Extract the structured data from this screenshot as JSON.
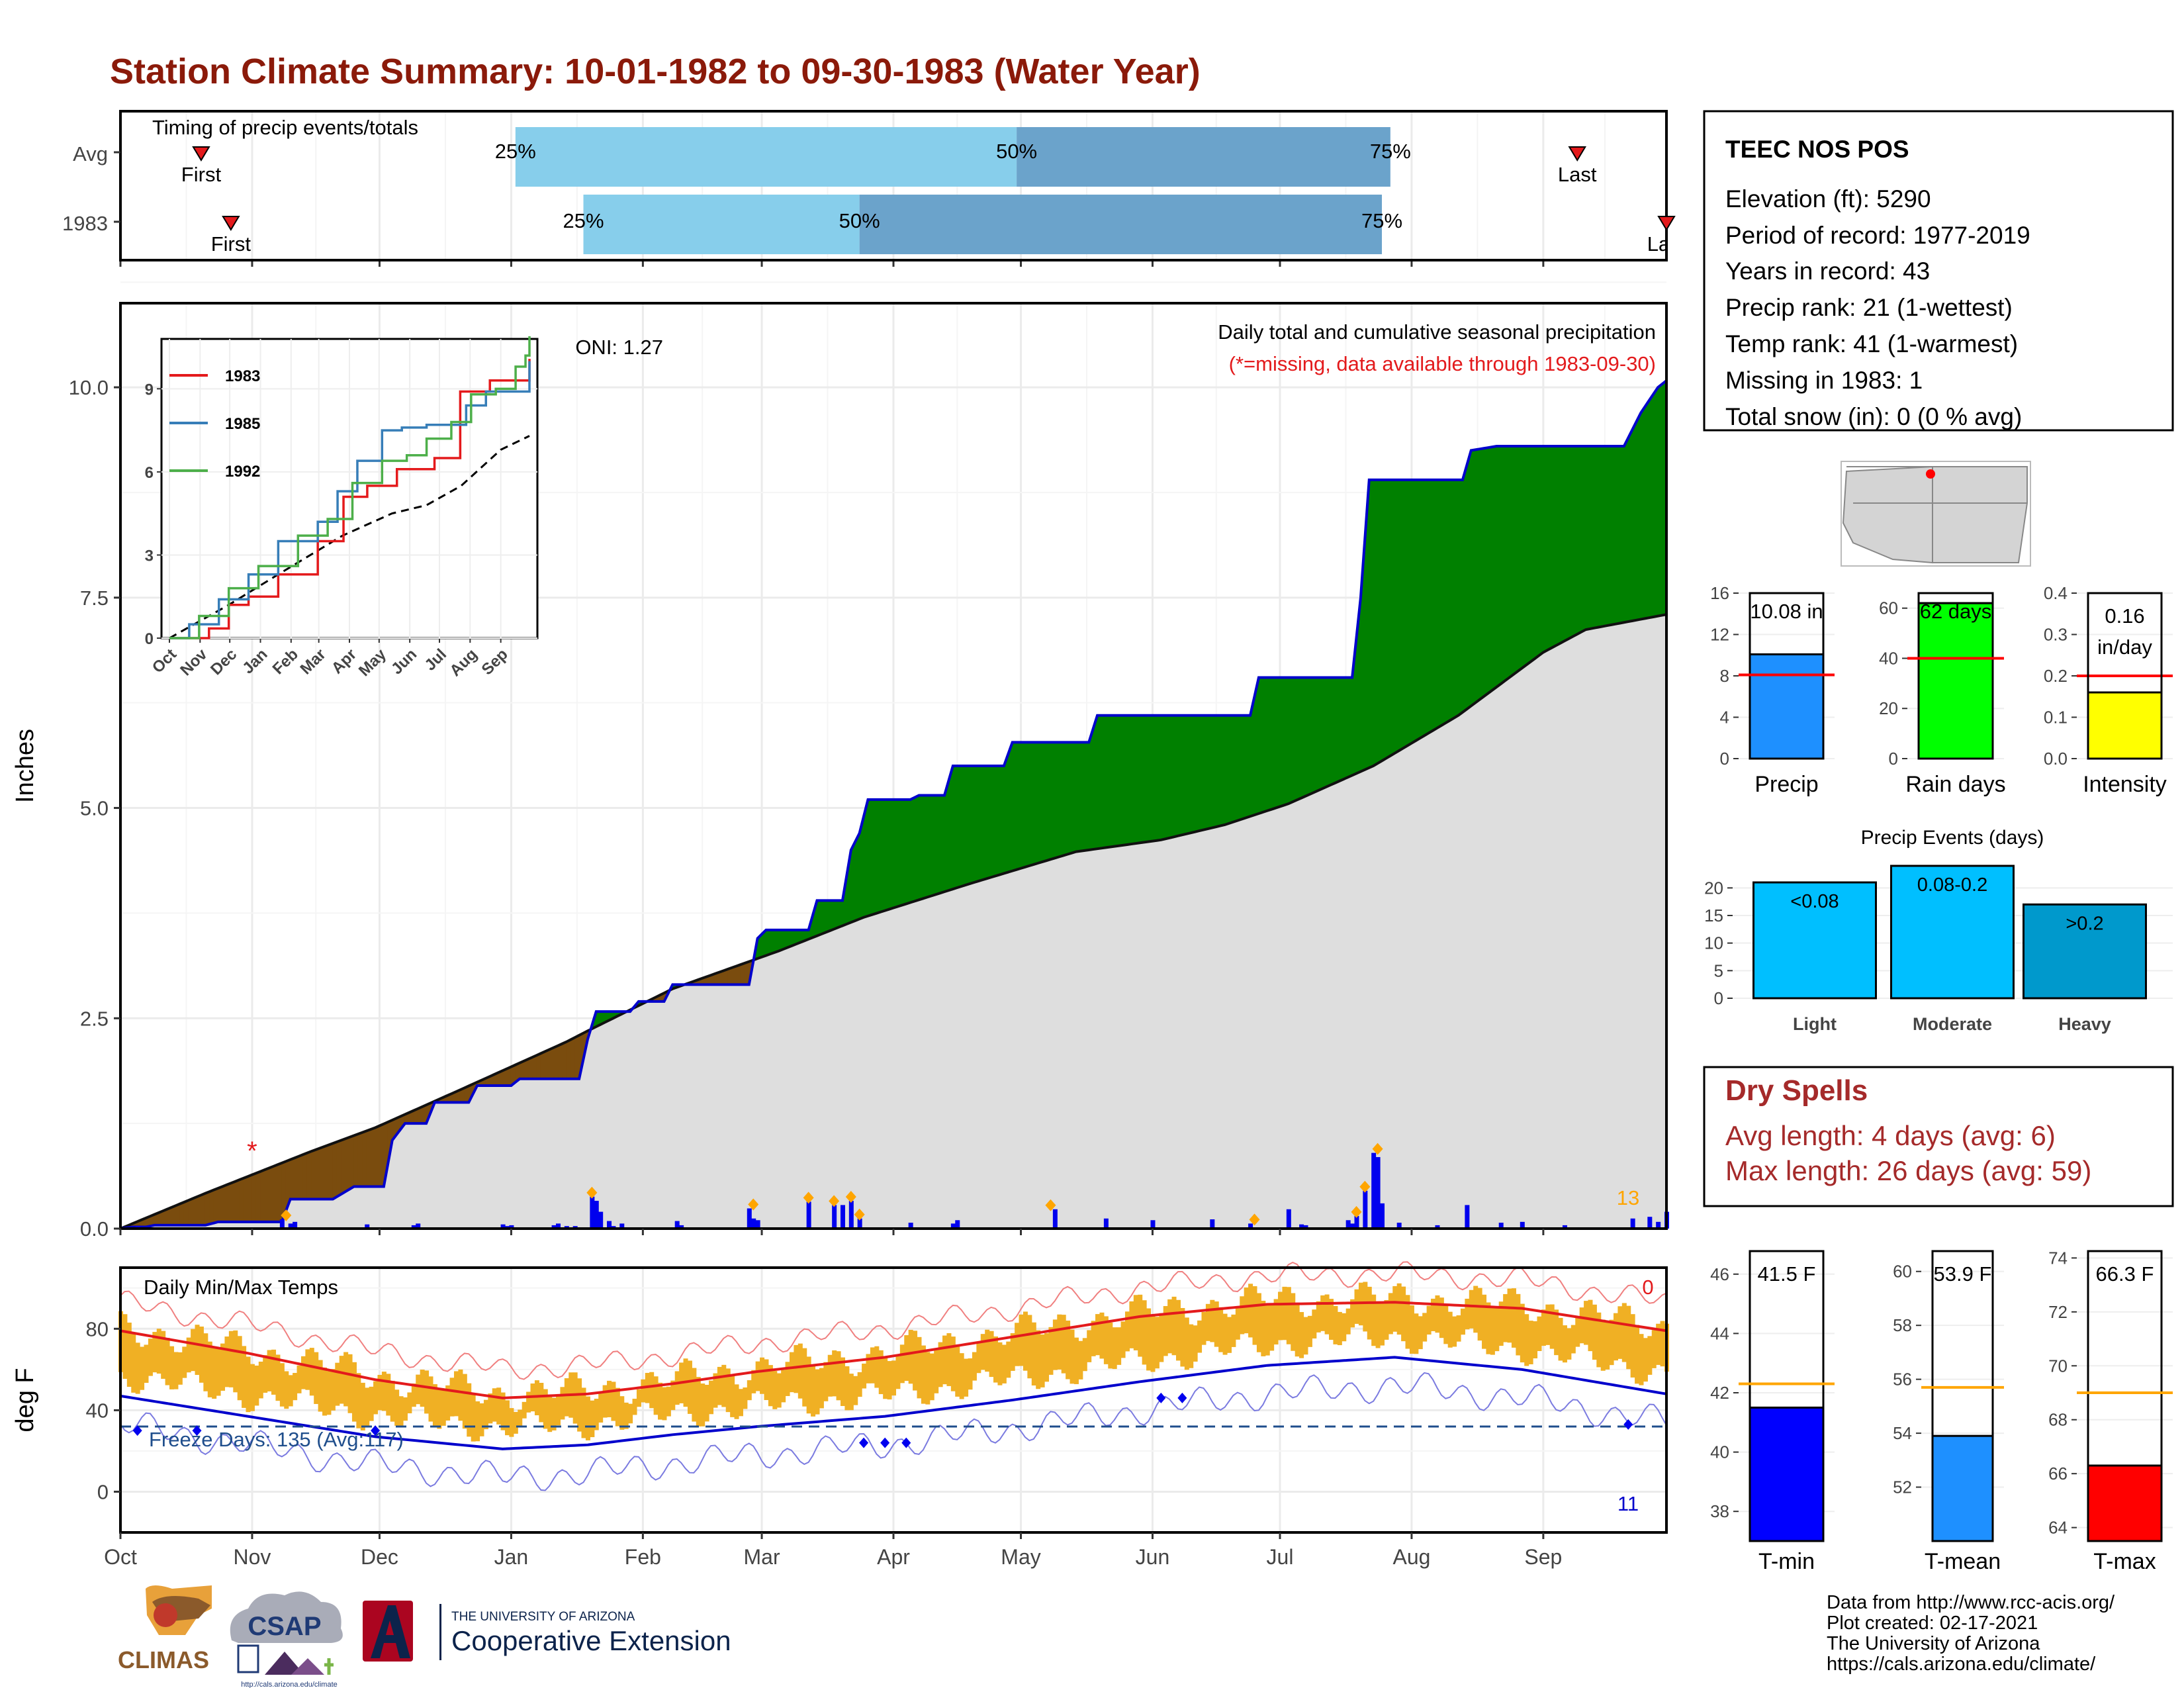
{
  "title": "Station Climate Summary: 10-01-1982 to 09-30-1983 (Water Year)",
  "months": [
    "Oct",
    "Nov",
    "Dec",
    "Jan",
    "Feb",
    "Mar",
    "Apr",
    "May",
    "Jun",
    "Jul",
    "Aug",
    "Sep"
  ],
  "timing": {
    "label": "Timing of precip events/totals",
    "rows": [
      {
        "name": "Avg",
        "first_day": 19,
        "p25": 93,
        "p50": 211,
        "p75": 299,
        "last_day": 343,
        "first_label": "First",
        "last_label": "Last"
      },
      {
        "name": "1983",
        "first_day": 26,
        "p25": 109,
        "p50": 174,
        "p75": 297,
        "last_day": 364,
        "first_label": "First",
        "last_label": "Last"
      }
    ],
    "pct_labels": [
      "25%",
      "50%",
      "75%"
    ],
    "colors": {
      "early": "#87CEEB",
      "late": "#6BA3CB",
      "marker": "#E31A1C"
    }
  },
  "chart_data": [
    {
      "type": "area",
      "name": "precip",
      "ylabel": "Inches",
      "ylim": [
        0,
        11
      ],
      "yticks": [
        0.0,
        2.5,
        5.0,
        7.5,
        10.0
      ],
      "yticklabels": [
        "0.0",
        "2.5",
        "5.0",
        "7.5",
        "10.0"
      ],
      "annotation_title": "Daily total and cumulative seasonal precipitation",
      "annotation_missing": "(*=missing, data available through 1983-09-30)",
      "oni": "ONI: 1.27",
      "count_label": "13",
      "missing_marker": "*",
      "missing_day": 31,
      "observed_cumulative": [
        [
          0,
          0
        ],
        [
          3,
          0.02
        ],
        [
          6,
          0.02
        ],
        [
          8,
          0.04
        ],
        [
          20,
          0.04
        ],
        [
          23,
          0.08
        ],
        [
          38,
          0.08
        ],
        [
          40,
          0.35
        ],
        [
          50,
          0.35
        ],
        [
          55,
          0.5
        ],
        [
          62,
          0.5
        ],
        [
          64,
          1.05
        ],
        [
          67,
          1.25
        ],
        [
          72,
          1.25
        ],
        [
          74,
          1.5
        ],
        [
          82,
          1.5
        ],
        [
          84,
          1.7
        ],
        [
          92,
          1.7
        ],
        [
          94,
          1.78
        ],
        [
          108,
          1.78
        ],
        [
          110,
          2.25
        ],
        [
          112,
          2.58
        ],
        [
          120,
          2.58
        ],
        [
          122,
          2.7
        ],
        [
          128,
          2.7
        ],
        [
          130,
          2.9
        ],
        [
          148,
          2.9
        ],
        [
          150,
          3.45
        ],
        [
          152,
          3.55
        ],
        [
          162,
          3.55
        ],
        [
          164,
          3.9
        ],
        [
          170,
          3.9
        ],
        [
          172,
          4.5
        ],
        [
          174,
          4.7
        ],
        [
          176,
          5.1
        ],
        [
          186,
          5.1
        ],
        [
          188,
          5.15
        ],
        [
          194,
          5.15
        ],
        [
          196,
          5.5
        ],
        [
          208,
          5.5
        ],
        [
          210,
          5.78
        ],
        [
          228,
          5.78
        ],
        [
          230,
          6.1
        ],
        [
          266,
          6.1
        ],
        [
          268,
          6.55
        ],
        [
          290,
          6.55
        ],
        [
          292,
          7.5
        ],
        [
          294,
          8.9
        ],
        [
          316,
          8.9
        ],
        [
          318,
          9.25
        ],
        [
          324,
          9.3
        ],
        [
          354,
          9.3
        ],
        [
          358,
          9.7
        ],
        [
          362,
          10.0
        ],
        [
          364,
          10.08
        ]
      ],
      "average_cumulative": [
        [
          0,
          0
        ],
        [
          20,
          0.42
        ],
        [
          45,
          0.92
        ],
        [
          60,
          1.2
        ],
        [
          80,
          1.65
        ],
        [
          105,
          2.22
        ],
        [
          110,
          2.35
        ],
        [
          130,
          2.85
        ],
        [
          155,
          3.3
        ],
        [
          175,
          3.7
        ],
        [
          200,
          4.1
        ],
        [
          225,
          4.48
        ],
        [
          245,
          4.62
        ],
        [
          260,
          4.8
        ],
        [
          275,
          5.05
        ],
        [
          295,
          5.5
        ],
        [
          315,
          6.1
        ],
        [
          335,
          6.85
        ],
        [
          345,
          7.12
        ],
        [
          364,
          7.3
        ]
      ],
      "daily_bars": [
        [
          1,
          0.02
        ],
        [
          4,
          0.03
        ],
        [
          38,
          0.11
        ],
        [
          40,
          0.06
        ],
        [
          41,
          0.08
        ],
        [
          58,
          0.05
        ],
        [
          69,
          0.04
        ],
        [
          70,
          0.06
        ],
        [
          90,
          0.05
        ],
        [
          91,
          0.03
        ],
        [
          92,
          0.04
        ],
        [
          102,
          0.04
        ],
        [
          103,
          0.06
        ],
        [
          105,
          0.03
        ],
        [
          107,
          0.03
        ],
        [
          111,
          0.38
        ],
        [
          112,
          0.33
        ],
        [
          113,
          0.2
        ],
        [
          115,
          0.09
        ],
        [
          116,
          0.03
        ],
        [
          118,
          0.06
        ],
        [
          131,
          0.09
        ],
        [
          132,
          0.04
        ],
        [
          148,
          0.24
        ],
        [
          149,
          0.12
        ],
        [
          150,
          0.1
        ],
        [
          162,
          0.32
        ],
        [
          168,
          0.28
        ],
        [
          170,
          0.28
        ],
        [
          172,
          0.33
        ],
        [
          174,
          0.12
        ],
        [
          186,
          0.07
        ],
        [
          196,
          0.06
        ],
        [
          197,
          0.1
        ],
        [
          220,
          0.23
        ],
        [
          232,
          0.12
        ],
        [
          243,
          0.1
        ],
        [
          257,
          0.11
        ],
        [
          266,
          0.06
        ],
        [
          275,
          0.23
        ],
        [
          278,
          0.05
        ],
        [
          279,
          0.04
        ],
        [
          289,
          0.1
        ],
        [
          290,
          0.06
        ],
        [
          291,
          0.15
        ],
        [
          293,
          0.45
        ],
        [
          295,
          0.9
        ],
        [
          296,
          0.85
        ],
        [
          297,
          0.3
        ],
        [
          301,
          0.07
        ],
        [
          310,
          0.04
        ],
        [
          317,
          0.28
        ],
        [
          325,
          0.07
        ],
        [
          330,
          0.08
        ],
        [
          340,
          0.04
        ],
        [
          356,
          0.12
        ],
        [
          360,
          0.14
        ],
        [
          362,
          0.08
        ],
        [
          364,
          0.2
        ]
      ],
      "heavy_event_days": [
        39,
        111,
        149,
        162,
        168,
        172,
        174,
        219,
        267,
        291,
        293,
        296
      ],
      "colors": {
        "above": "#008000",
        "below": "#7A4C0E",
        "avg_fill": "#DEDEDE",
        "line": "#0000CC",
        "bars": "#0000EE",
        "diamond": "#FFA500"
      }
    },
    {
      "type": "line",
      "name": "inset",
      "yticks": [
        0,
        3,
        6,
        9
      ],
      "ylim": [
        0,
        10.8
      ],
      "xticklabels": [
        "Oct",
        "Nov",
        "Dec",
        "Jan",
        "Feb",
        "Mar",
        "Apr",
        "May",
        "Jun",
        "Jul",
        "Aug",
        "Sep"
      ],
      "series": [
        {
          "name": "1983",
          "color": "#E41A1C",
          "values": [
            [
              0,
              0
            ],
            [
              40,
              0.35
            ],
            [
              60,
              1.2
            ],
            [
              80,
              1.5
            ],
            [
              110,
              2.3
            ],
            [
              150,
              3.5
            ],
            [
              176,
              5.1
            ],
            [
              200,
              5.5
            ],
            [
              230,
              6.1
            ],
            [
              268,
              6.5
            ],
            [
              294,
              8.9
            ],
            [
              324,
              9.3
            ],
            [
              364,
              10.08
            ]
          ]
        },
        {
          "name": "1985",
          "color": "#377EB8",
          "values": [
            [
              0,
              0
            ],
            [
              20,
              0.5
            ],
            [
              50,
              1.4
            ],
            [
              80,
              2.3
            ],
            [
              110,
              3.5
            ],
            [
              150,
              4.2
            ],
            [
              170,
              5.3
            ],
            [
              190,
              6.4
            ],
            [
              215,
              7.5
            ],
            [
              235,
              7.6
            ],
            [
              260,
              7.7
            ],
            [
              285,
              7.7
            ],
            [
              300,
              8.4
            ],
            [
              320,
              8.9
            ],
            [
              364,
              10.0
            ]
          ]
        },
        {
          "name": "1992",
          "color": "#4DAF4A",
          "values": [
            [
              0,
              0
            ],
            [
              30,
              0.8
            ],
            [
              60,
              1.8
            ],
            [
              90,
              2.6
            ],
            [
              130,
              3.7
            ],
            [
              160,
              4.3
            ],
            [
              185,
              5.6
            ],
            [
              215,
              6.4
            ],
            [
              240,
              6.6
            ],
            [
              260,
              7.2
            ],
            [
              285,
              7.8
            ],
            [
              305,
              8.8
            ],
            [
              330,
              9.0
            ],
            [
              350,
              9.8
            ],
            [
              360,
              10.2
            ],
            [
              364,
              10.9
            ]
          ]
        }
      ],
      "average": [
        [
          0,
          0
        ],
        [
          60,
          1.2
        ],
        [
          110,
          2.3
        ],
        [
          175,
          3.7
        ],
        [
          225,
          4.5
        ],
        [
          260,
          4.8
        ],
        [
          295,
          5.5
        ],
        [
          335,
          6.8
        ],
        [
          364,
          7.3
        ]
      ]
    },
    {
      "type": "line",
      "name": "temperature",
      "title": "Daily Min/Max Temps",
      "ylabel": "deg F",
      "ylim": [
        -20,
        110
      ],
      "yticks": [
        0,
        40,
        80
      ],
      "freeze_label": "Freeze Days: 135 (Avg:117)",
      "freeze_line": 32,
      "hot_count": "0",
      "cold_count": "11",
      "normal_max": [
        [
          0,
          79
        ],
        [
          30,
          68
        ],
        [
          60,
          55
        ],
        [
          90,
          46
        ],
        [
          110,
          48
        ],
        [
          130,
          53
        ],
        [
          150,
          59
        ],
        [
          180,
          66
        ],
        [
          210,
          76
        ],
        [
          240,
          86
        ],
        [
          270,
          92
        ],
        [
          300,
          93
        ],
        [
          330,
          90
        ],
        [
          364,
          79
        ]
      ],
      "normal_min": [
        [
          0,
          47
        ],
        [
          30,
          37
        ],
        [
          60,
          27
        ],
        [
          90,
          21
        ],
        [
          110,
          23
        ],
        [
          130,
          28
        ],
        [
          150,
          32
        ],
        [
          180,
          37
        ],
        [
          210,
          45
        ],
        [
          240,
          54
        ],
        [
          270,
          62
        ],
        [
          300,
          66
        ],
        [
          330,
          60
        ],
        [
          364,
          48
        ]
      ],
      "colors": {
        "bars": "#F0B024",
        "max": "#E31A1C",
        "min": "#0000CC",
        "freeze": "#1F4E8C"
      }
    },
    {
      "type": "bar",
      "name": "summary",
      "panels": [
        {
          "label": "Precip",
          "value": 10.08,
          "display": "10.08 in",
          "avg": 8.1,
          "ylim": [
            0,
            16
          ],
          "yticks": [
            0,
            4,
            8,
            12,
            16
          ],
          "color": "#1E90FF"
        },
        {
          "label": "Rain days",
          "value": 62,
          "display": "62 days",
          "avg": 40,
          "ylim": [
            0,
            66
          ],
          "yticks": [
            0,
            20,
            40,
            60
          ],
          "color": "#00FF00"
        },
        {
          "label": "Intensity",
          "value": 0.16,
          "display_line1": "0.16",
          "display_line2": "in/day",
          "avg": 0.2,
          "ylim": [
            0,
            0.4
          ],
          "yticks": [
            0.0,
            0.1,
            0.2,
            0.3,
            0.4
          ],
          "yticklabels": [
            "0.0",
            "0.1",
            "0.2",
            "0.3",
            "0.4"
          ],
          "color": "#FFFF00"
        }
      ]
    },
    {
      "type": "bar",
      "name": "events",
      "title": "Precip Events (days)",
      "categories": [
        "Light",
        "Moderate",
        "Heavy"
      ],
      "values": [
        21,
        24,
        17
      ],
      "bar_labels": [
        "<0.08",
        "0.08-0.2",
        ">0.2"
      ],
      "ylim": [
        0,
        24
      ],
      "yticks": [
        0,
        5,
        10,
        15,
        20
      ],
      "colors": [
        "#00BFFF",
        "#00BFFF",
        "#0099CC"
      ]
    },
    {
      "type": "bar",
      "name": "temps",
      "panels": [
        {
          "label": "T-min",
          "value": 41.5,
          "display": "41.5 F",
          "avg": 42.3,
          "ylim": [
            37,
            47
          ],
          "yticks": [
            38,
            40,
            42,
            44,
            46
          ],
          "color": "#0000FF"
        },
        {
          "label": "T-mean",
          "value": 53.9,
          "display": "53.9 F",
          "avg": 55.7,
          "ylim": [
            50,
            61
          ],
          "yticks": [
            52,
            54,
            56,
            58,
            60
          ],
          "color": "#1E90FF"
        },
        {
          "label": "T-max",
          "value": 66.3,
          "display": "66.3 F",
          "avg": 69.0,
          "ylim": [
            63.5,
            74.5
          ],
          "yticks": [
            64,
            66,
            68,
            70,
            72,
            74
          ],
          "color": "#FF0000"
        }
      ]
    }
  ],
  "station": {
    "name": "TEEC NOS POS",
    "lines": [
      "Elevation (ft): 5290",
      "Period of record: 1977-2019",
      "Years in record: 43",
      "Precip rank: 21 (1-wettest)",
      "Temp rank: 41 (1-warmest)",
      "Missing in 1983: 1",
      "Total snow (in): 0 (0 % avg)"
    ]
  },
  "dry_spells": {
    "title": "Dry Spells",
    "avg_length": "Avg length: 4 days (avg: 6)",
    "max_length": "Max length: 26 days (avg: 59)"
  },
  "logos": {
    "climas": "CLIMAS",
    "csap": "CSAP",
    "csap_url": "http://cals.arizona.edu/climate",
    "ua_line1": "THE UNIVERSITY OF ARIZONA",
    "ua_line2": "Cooperative Extension"
  },
  "footer": [
    "Data from http://www.rcc-acis.org/",
    "Plot created: 02-17-2021",
    "The University of Arizona",
    "https://cals.arizona.edu/climate/"
  ]
}
